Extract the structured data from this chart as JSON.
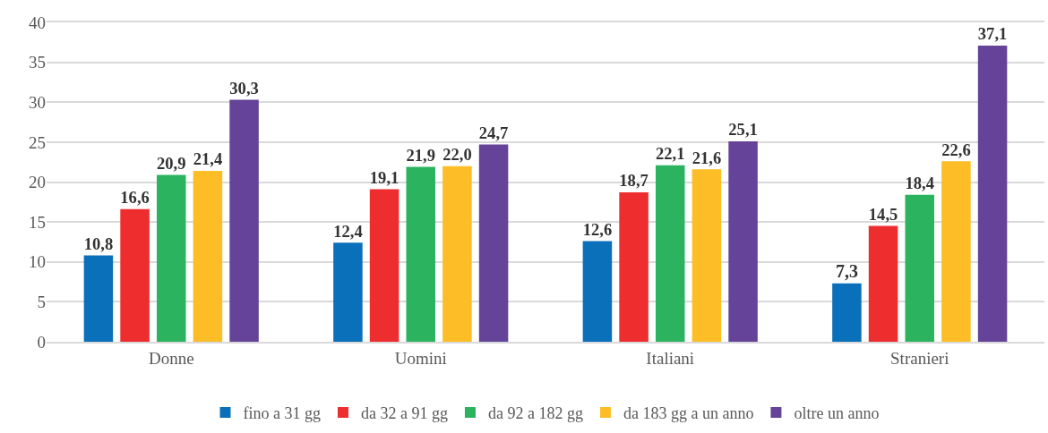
{
  "chart_data": {
    "type": "bar",
    "categories": [
      "Donne",
      "Uomini",
      "Italiani",
      "Stranieri"
    ],
    "series": [
      {
        "name": "fino a 31 gg",
        "color": "#0b70ba",
        "values": [
          10.8,
          12.4,
          12.6,
          7.3
        ],
        "value_labels": [
          "10,8",
          "12,4",
          "12,6",
          "7,3"
        ]
      },
      {
        "name": "da 32 a 91 gg",
        "color": "#ee2d2f",
        "values": [
          16.6,
          19.1,
          18.7,
          14.5
        ],
        "value_labels": [
          "16,6",
          "19,1",
          "18,7",
          "14,5"
        ]
      },
      {
        "name": "da 92 a 182 gg",
        "color": "#2bb360",
        "values": [
          20.9,
          21.9,
          22.1,
          18.4
        ],
        "value_labels": [
          "20,9",
          "21,9",
          "22,1",
          "18,4"
        ]
      },
      {
        "name": "da 183 gg a un anno",
        "color": "#fdbd26",
        "values": [
          21.4,
          22.0,
          21.6,
          22.6
        ],
        "value_labels": [
          "21,4",
          "22,0",
          "21,6",
          "22,6"
        ]
      },
      {
        "name": "oltre un anno",
        "color": "#654399",
        "values": [
          30.3,
          24.7,
          25.1,
          37.1
        ],
        "value_labels": [
          "30,3",
          "24,7",
          "25,1",
          "37,1"
        ]
      }
    ],
    "ylim": [
      0,
      40
    ],
    "yticks": [
      0,
      5,
      10,
      15,
      20,
      25,
      30,
      35,
      40
    ],
    "grid": "y",
    "legend": "bottom"
  }
}
